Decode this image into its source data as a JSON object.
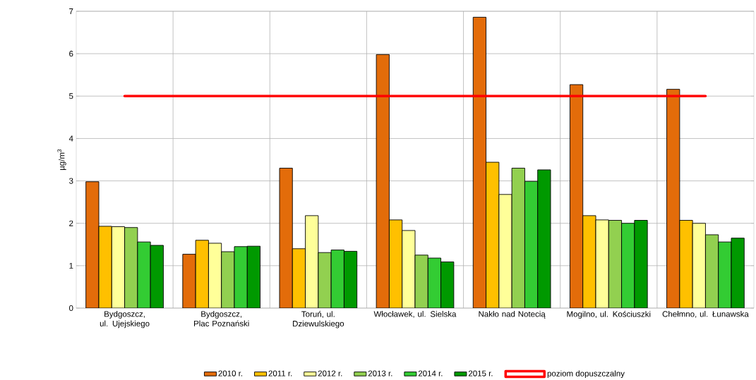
{
  "chart_data": {
    "type": "bar",
    "ylabel": "µg/m$^{3}$",
    "categories": [
      "Bydgoszcz, ul. Ujejskiego",
      "Bydgoszcz, Plac Poznański",
      "Toruń, ul. Dziewulskiego",
      "Włocławek, ul. Sielska",
      "Nakło nad Notecią",
      "Mogilno, ul. Kościuszki",
      "Chełmno, ul. Łunawska"
    ],
    "series": [
      {
        "name": "2010 r.",
        "color": "#e36c0a",
        "values": [
          2.98,
          1.27,
          3.3,
          5.98,
          6.86,
          5.27,
          5.16
        ]
      },
      {
        "name": "2011 r.",
        "color": "#ffc000",
        "values": [
          1.93,
          1.6,
          1.4,
          2.08,
          3.44,
          2.18,
          2.07
        ]
      },
      {
        "name": "2012 r.",
        "color": "#ffff99",
        "values": [
          1.92,
          1.53,
          2.18,
          1.83,
          2.68,
          2.08,
          2.0
        ]
      },
      {
        "name": "2013 r.",
        "color": "#92d050",
        "values": [
          1.9,
          1.33,
          1.31,
          1.25,
          3.3,
          2.07,
          1.73
        ]
      },
      {
        "name": "2014 r.",
        "color": "#33cc33",
        "values": [
          1.56,
          1.45,
          1.37,
          1.18,
          2.99,
          2.0,
          1.56
        ]
      },
      {
        "name": "2015 r.",
        "color": "#009900",
        "values": [
          1.48,
          1.46,
          1.34,
          1.09,
          3.26,
          2.07,
          1.65
        ]
      },
      {
        "name": "poziom dopuszczalny",
        "type": "line",
        "color": "#ff0000",
        "values": [
          5,
          5,
          5,
          5,
          5,
          5,
          5
        ]
      }
    ],
    "ylim": [
      0,
      7
    ],
    "yticks": [
      0,
      1,
      2,
      3,
      4,
      5,
      6,
      7
    ],
    "grid": true,
    "legend": "bottom"
  }
}
